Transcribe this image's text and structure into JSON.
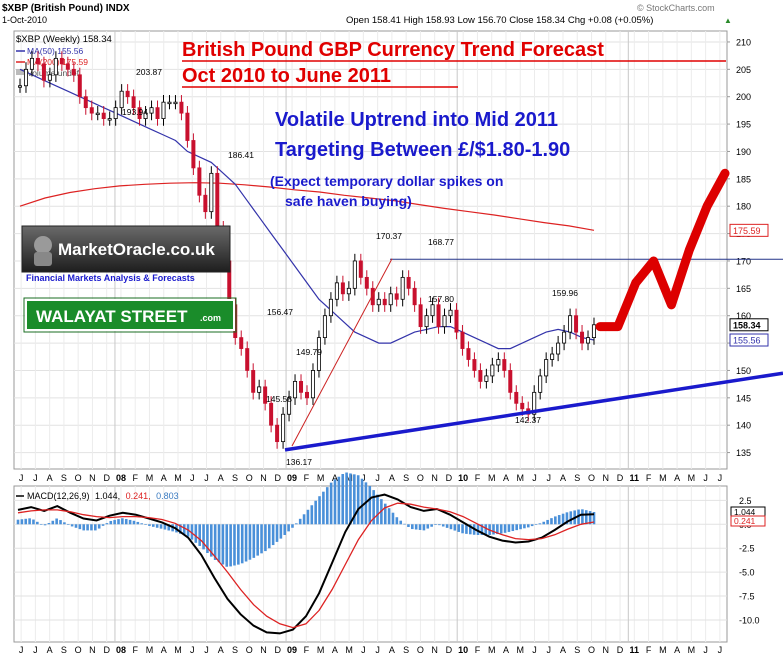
{
  "header": {
    "symbol": "$XBP (British Pound) INDX",
    "date": "1-Oct-2010",
    "ohlc": "Open 158.41  High 158.93  Low 156.70  Close 158.34  Chg +0.08 (+0.05%)",
    "ohlc_arrow": "▲",
    "copyright": "© StockCharts.com"
  },
  "legend": {
    "main": "$XBP (Weekly) 158.34",
    "ma50": "MA(50) 155.56",
    "ma200": "MA(200) 175.59",
    "volume": "Volume undef"
  },
  "annotations": {
    "title1": "British Pound GBP Currency Trend Forecast",
    "title2": "Oct 2010 to June 2011",
    "blue1": "Volatile Uptrend into Mid 2011",
    "blue2": "Targeting Between £/$1.80-1.90",
    "paren1": "(Expect temporary dollar spikes on",
    "paren2": "safe haven buying)",
    "logo_main": "MarketOracle.co.uk",
    "logo_sub": "Financial Markets Analysis & Forecasts",
    "badge_main": "WALAYAT STREET",
    "badge_sub": ".com"
  },
  "macd": {
    "label": "MACD(12,26,9) 1.044, 0.241, 0.803",
    "label_parts": [
      "MACD(12,26,9)",
      "1.044,",
      "0.241,",
      "0.803"
    ],
    "yticks": [
      "2.5",
      "0.0",
      "-2.5",
      "-5.0",
      "-7.5",
      "-10.0"
    ],
    "tag_macd": "1.044",
    "tag_signal": "0.241"
  },
  "colors": {
    "up": "#000000",
    "down": "#c8102e",
    "ma50": "#3333aa",
    "ma200": "#dd2222",
    "trend": "#1a1acc",
    "forecast": "#dd0000",
    "hist": "#4a90d9"
  },
  "chart_data": {
    "type": "line",
    "title": "British Pound GBP Currency Trend Forecast",
    "subtitle": "Oct 2010 to June 2011",
    "xlabel": "",
    "ylabel": "",
    "ylim": [
      132,
      212
    ],
    "grid": true,
    "legend_position": "top-left",
    "yticks": [
      135,
      140,
      145,
      150,
      155,
      160,
      165,
      170,
      175,
      180,
      185,
      190,
      195,
      200,
      205,
      210
    ],
    "year_labels": [
      "08",
      "09",
      "10",
      "11"
    ],
    "month_letters_top": [
      "J",
      "J",
      "A",
      "S",
      "O",
      "N",
      "D",
      "08",
      "F",
      "M",
      "A",
      "M",
      "J",
      "J",
      "A",
      "S",
      "O",
      "N",
      "D",
      "09",
      "F",
      "M",
      "A",
      "M",
      "J",
      "J",
      "A",
      "S",
      "O",
      "N",
      "D",
      "10",
      "F",
      "M",
      "A",
      "M",
      "J",
      "J",
      "A",
      "S",
      "O",
      "N",
      "D",
      "11",
      "F",
      "M",
      "A",
      "M",
      "J",
      "J"
    ],
    "month_letters_bottom": [
      "J",
      "J",
      "A",
      "S",
      "O",
      "N",
      "D",
      "08",
      "F",
      "M",
      "A",
      "M",
      "J",
      "J",
      "A",
      "S",
      "O",
      "N",
      "D",
      "09",
      "F",
      "M",
      "A",
      "M",
      "J",
      "J",
      "A",
      "S",
      "O",
      "N",
      "D",
      "10",
      "F",
      "M",
      "A",
      "M",
      "J",
      "J",
      "A",
      "S",
      "O",
      "N",
      "D",
      "11",
      "F",
      "M",
      "A",
      "M",
      "J",
      "J"
    ],
    "point_labels": [
      {
        "text": "203.87",
        "x": "2007-12",
        "y": 203.87
      },
      {
        "text": "193.94",
        "x": "2008-02",
        "y": 193.94
      },
      {
        "text": "186.41",
        "x": "2008-08",
        "y": 186.41
      },
      {
        "text": "170.37",
        "x": "2009-08",
        "y": 170.37
      },
      {
        "text": "168.77",
        "x": "2009-10",
        "y": 168.77
      },
      {
        "text": "157.80",
        "x": "2009-10",
        "y": 157.8
      },
      {
        "text": "159.96",
        "x": "2010-08",
        "y": 159.96
      },
      {
        "text": "156.47",
        "x": "2008-12",
        "y": 156.47
      },
      {
        "text": "149.79",
        "x": "2009-01",
        "y": 149.79
      },
      {
        "text": "145.58",
        "x": "2008-11",
        "y": 145.58
      },
      {
        "text": "136.17",
        "x": "2009-01",
        "y": 136.17
      },
      {
        "text": "142.37",
        "x": "2010-05",
        "y": 142.37
      }
    ],
    "right_tags": [
      {
        "text": "175.59",
        "y": 175.59,
        "color": "#dd2222"
      },
      {
        "text": "158.34",
        "y": 158.34,
        "color": "#000000"
      },
      {
        "text": "155.56",
        "y": 155.56,
        "color": "#3333aa"
      }
    ],
    "series": [
      {
        "name": "$XBP (Weekly)",
        "values": [
          202,
          205,
          207,
          206,
          203,
          204,
          207,
          206,
          205,
          204,
          200,
          198,
          197,
          197,
          196,
          196,
          198,
          201,
          200,
          198,
          196,
          197,
          198,
          196,
          199,
          199,
          199,
          197,
          192,
          187,
          182,
          179,
          186,
          176,
          170,
          162,
          156,
          154,
          150,
          146,
          147,
          144,
          140,
          137,
          142,
          145,
          148,
          146,
          145,
          150,
          156,
          160,
          163,
          166,
          164,
          165,
          170,
          167,
          165,
          162,
          163,
          162,
          164,
          163,
          167,
          165,
          162,
          158,
          160,
          162,
          158,
          160,
          161,
          157,
          154,
          152,
          150,
          148,
          149,
          151,
          152,
          150,
          146,
          144,
          143,
          142,
          146,
          149,
          152,
          153,
          155,
          157,
          160,
          157,
          155,
          156,
          158.34
        ]
      },
      {
        "name": "MA(50)",
        "values": [
          205,
          204,
          203,
          202,
          201,
          200,
          199,
          198,
          197,
          196,
          195,
          194,
          193,
          192,
          190,
          189,
          188,
          186,
          184,
          181,
          178,
          175,
          172,
          169,
          166,
          163,
          161,
          159,
          157,
          156,
          155,
          155,
          156,
          157,
          157.5,
          158,
          158,
          157,
          156,
          155,
          154,
          154,
          155,
          156,
          157,
          157.5,
          157,
          156,
          155.56
        ]
      },
      {
        "name": "MA(200)",
        "values": [
          180,
          181.5,
          182.5,
          183.2,
          183.7,
          184,
          184.2,
          184.3,
          184.2,
          183.9,
          183.5,
          183,
          182.6,
          182,
          181.5,
          181,
          180.3,
          179.6,
          179,
          178.4,
          177.7,
          177,
          176.4,
          175.59
        ]
      },
      {
        "name": "Forecast",
        "values": [
          158,
          158,
          166,
          170,
          162,
          172,
          180,
          186
        ]
      },
      {
        "name": "MACD",
        "values": [
          1.5,
          1.8,
          1.4,
          1.9,
          1.2,
          0.6,
          0.4,
          0.9,
          1.2,
          1.0,
          0.6,
          0.2,
          -0.4,
          -1.4,
          -3.2,
          -5.6,
          -7.8,
          -9.4,
          -10.6,
          -11.3,
          -11.4,
          -11.0,
          -9.6,
          -7.2,
          -4.0,
          -0.8,
          1.6,
          2.8,
          3.1,
          2.6,
          1.8,
          1.4,
          1.6,
          1.0,
          0.2,
          -0.6,
          -1.3,
          -1.7,
          -1.9,
          -1.8,
          -1.4,
          -0.6,
          0.3,
          1.0,
          1.044
        ]
      },
      {
        "name": "Signal",
        "values": [
          1.2,
          1.4,
          1.5,
          1.5,
          1.3,
          1.0,
          0.8,
          0.7,
          0.8,
          0.8,
          0.7,
          0.5,
          0.1,
          -0.6,
          -1.7,
          -3.3,
          -5.0,
          -6.8,
          -8.4,
          -9.6,
          -10.4,
          -10.8,
          -10.4,
          -9.0,
          -6.8,
          -4.2,
          -1.6,
          0.4,
          1.7,
          2.2,
          2.1,
          1.8,
          1.6,
          1.3,
          0.8,
          0.1,
          -0.6,
          -1.1,
          -1.5,
          -1.6,
          -1.5,
          -1.1,
          -0.5,
          0.0,
          0.241
        ]
      }
    ]
  }
}
